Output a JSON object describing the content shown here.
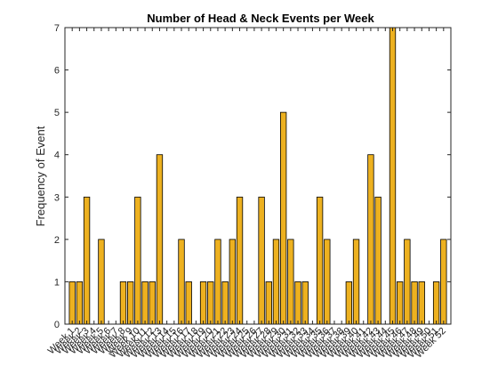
{
  "chart_data": {
    "type": "bar",
    "title": "Number of Head & Neck Events per Week",
    "xlabel": "",
    "ylabel": "Frequency of Event",
    "categories": [
      "Week 1",
      "Week 2",
      "Week 3",
      "Week 4",
      "Week 5",
      "Week 6",
      "Week 7",
      "Week 8",
      "Week 9",
      "Week 10",
      "Week 11",
      "Week 12",
      "Week 13",
      "Week 14",
      "Week 15",
      "Week 16",
      "Week 17",
      "Week 18",
      "Week 19",
      "Week 20",
      "Week 21",
      "Week 22",
      "Week 23",
      "Week 24",
      "Week 25",
      "Week 26",
      "Week 27",
      "Week 28",
      "Week 29",
      "Week 30",
      "Week 31",
      "Week 32",
      "Week 33",
      "Week 34",
      "Week 35",
      "Week 36",
      "Week 37",
      "Week 38",
      "Week 39",
      "Week 40",
      "Week 41",
      "Week 42",
      "Week 43",
      "Week 44",
      "Week 45",
      "Week 46",
      "Week 47",
      "Week 48",
      "Week 49",
      "Week 50",
      "Week 51",
      "Week 52"
    ],
    "values": [
      1,
      1,
      3,
      0,
      2,
      0,
      0,
      1,
      1,
      3,
      1,
      1,
      4,
      0,
      0,
      2,
      1,
      0,
      1,
      1,
      2,
      1,
      2,
      3,
      0,
      0,
      3,
      1,
      2,
      5,
      2,
      1,
      1,
      0,
      3,
      2,
      0,
      0,
      1,
      2,
      0,
      4,
      3,
      0,
      7,
      1,
      2,
      1,
      1,
      0,
      1,
      2
    ],
    "ylim": [
      0,
      7
    ],
    "yticks": [
      0,
      1,
      2,
      3,
      4,
      5,
      6,
      7
    ],
    "bar_color": "#EDB120",
    "grid": false,
    "box": true
  }
}
